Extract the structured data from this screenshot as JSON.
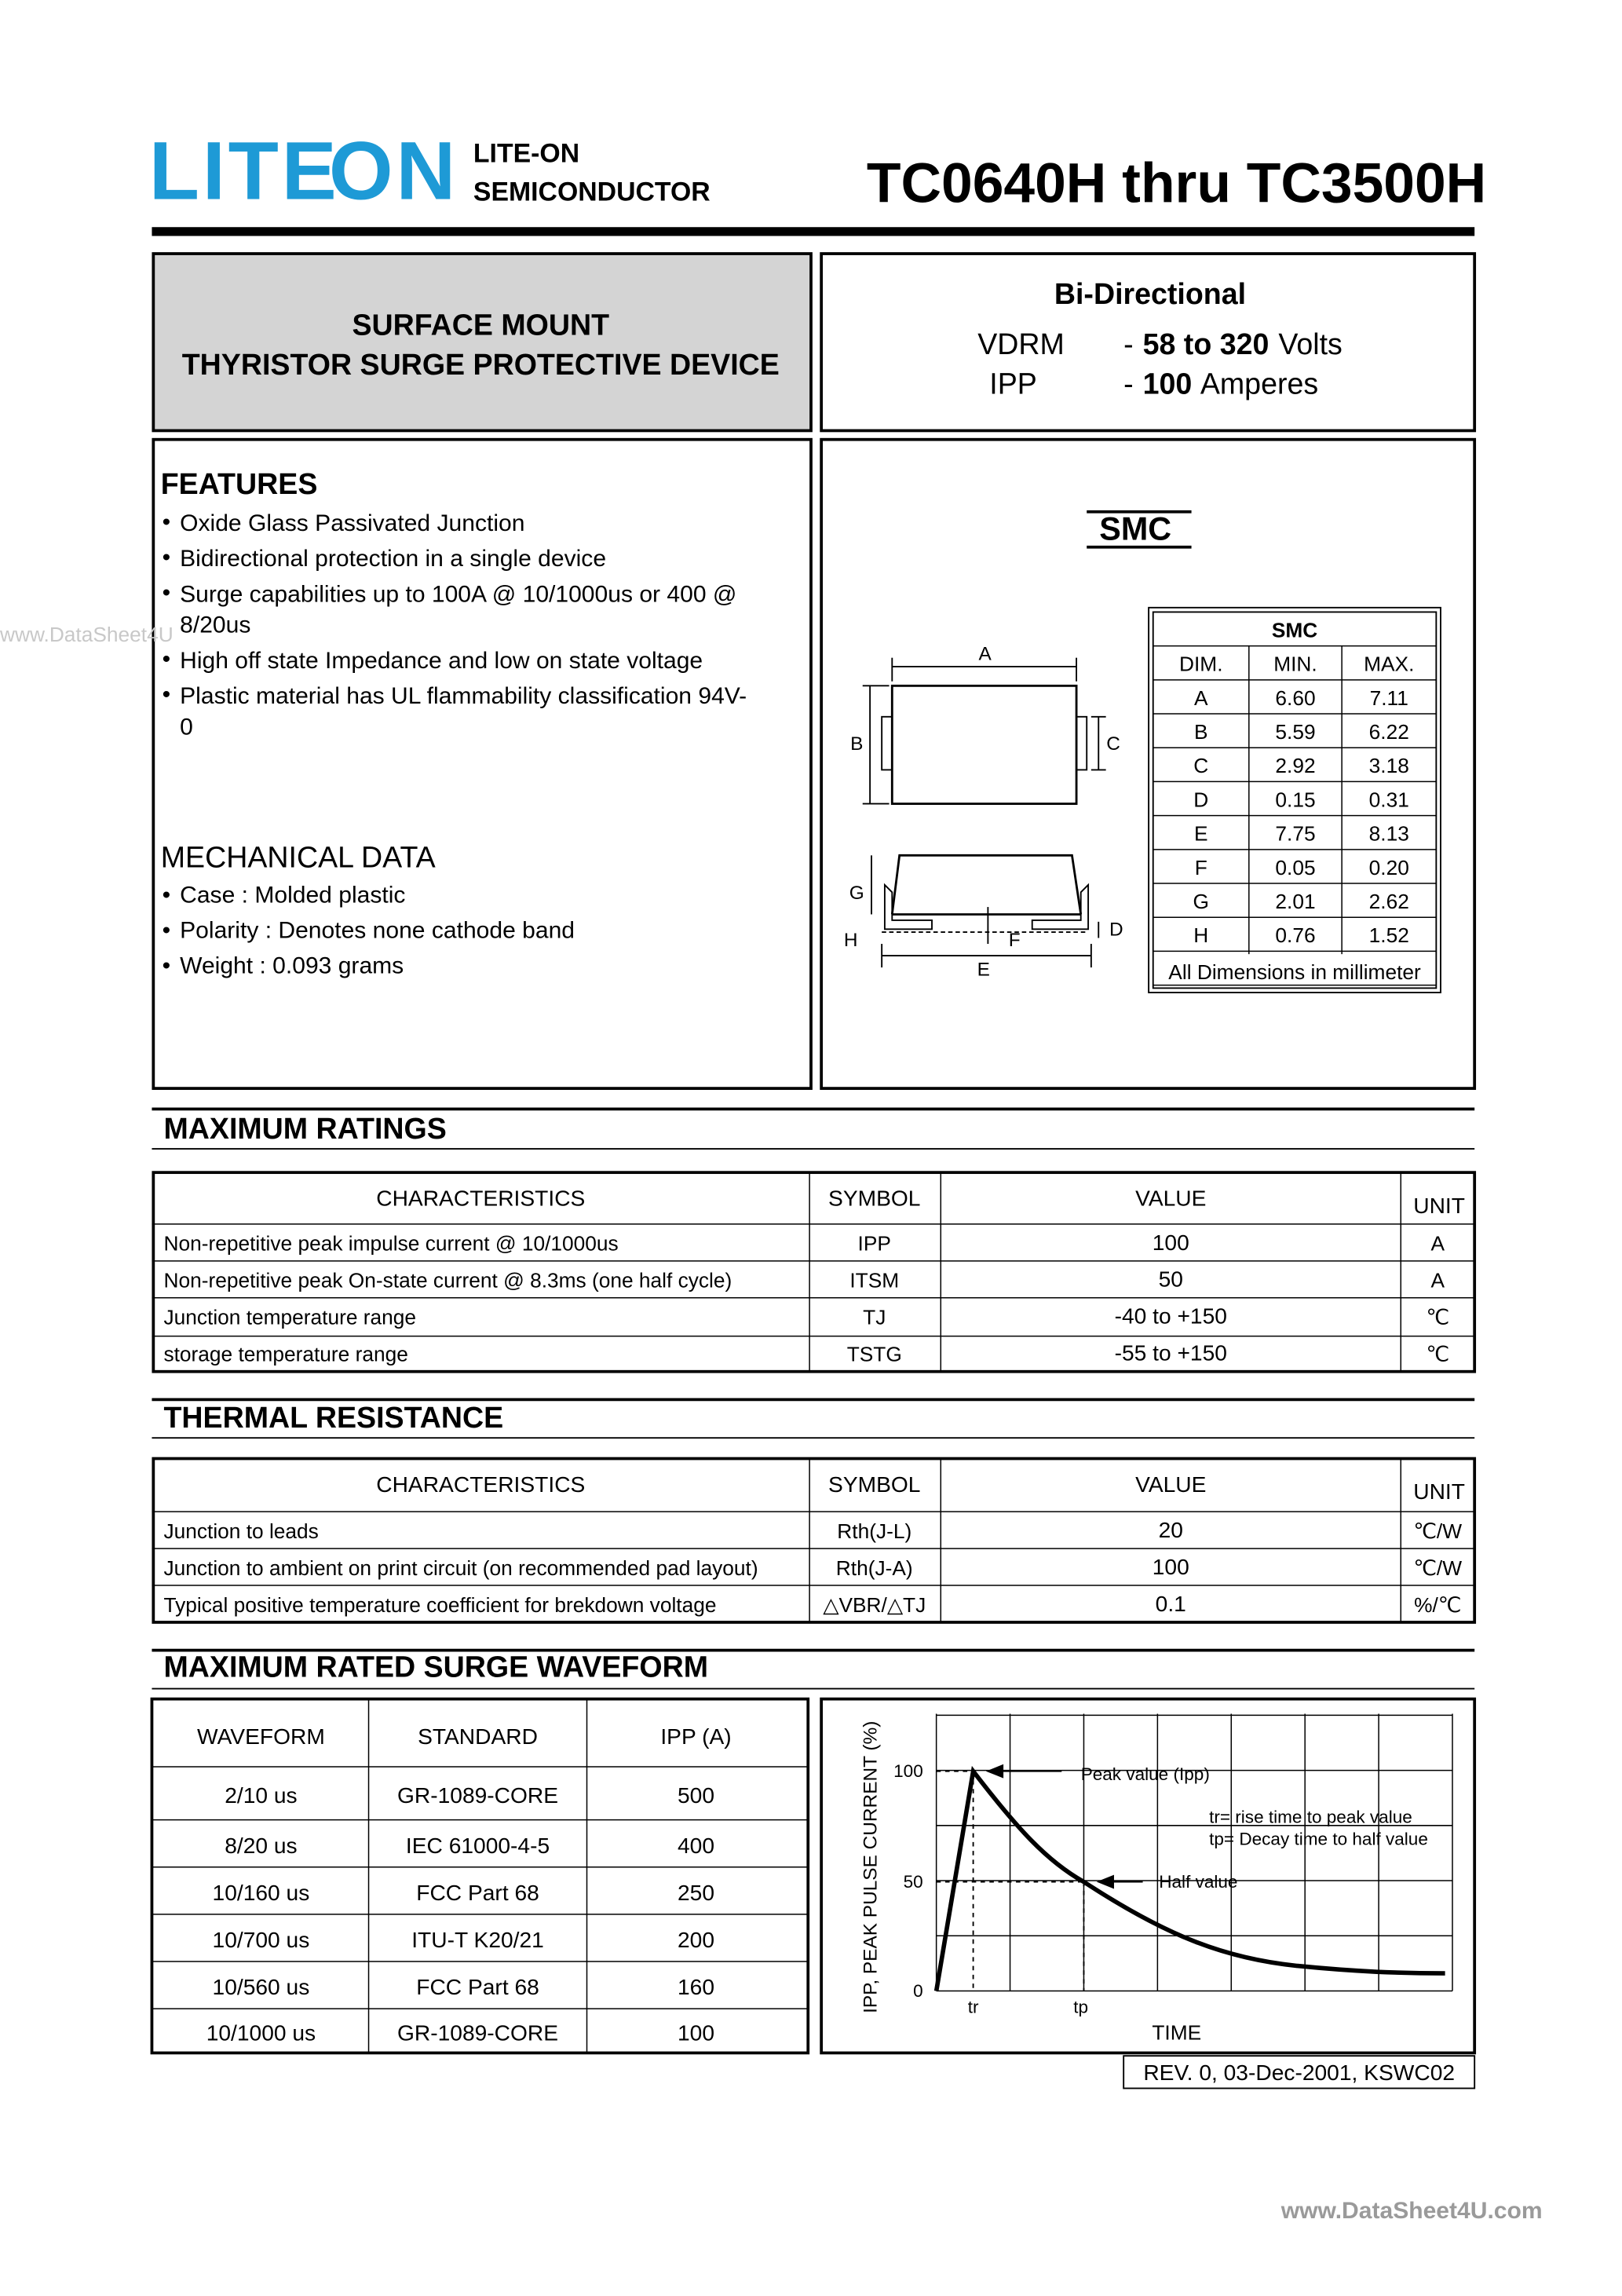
{
  "header": {
    "logo_left": "LITE",
    "logo_right": "ON",
    "company": [
      "LITE-ON",
      "SEMICONDUCTOR"
    ],
    "part_number": "TC0640H thru TC3500H"
  },
  "description": {
    "lines": [
      "SURFACE MOUNT",
      "THYRISTOR SURGE PROTECTIVE DEVICE"
    ]
  },
  "summary": {
    "title": "Bi-Directional",
    "rows": [
      {
        "symbol": "VDRM",
        "dash": "-",
        "value": "58 to 320",
        "unit": "Volts"
      },
      {
        "symbol": "IPP",
        "dash": "-",
        "value": "100",
        "unit": "Amperes"
      }
    ]
  },
  "features": {
    "title": "FEATURES",
    "items": [
      "Oxide Glass Passivated Junction",
      "Bidirectional protection in a single device",
      "Surge capabilities up to 100A @ 10/1000us or 400 @ 8/20us",
      "High off state Impedance and low on state voltage",
      "Plastic material has UL flammability classification 94V-0"
    ]
  },
  "mechanical": {
    "title": "MECHANICAL DATA",
    "items": [
      "Case : Molded plastic",
      "Polarity : Denotes none cathode band",
      "Weight :  0.093 grams"
    ]
  },
  "package": {
    "name": "SMC",
    "drawing_labels": [
      "A",
      "B",
      "C",
      "G",
      "H",
      "F",
      "D",
      "E"
    ],
    "table": {
      "title": "SMC",
      "header": [
        "DIM.",
        "MIN.",
        "MAX."
      ],
      "rows": [
        [
          "A",
          "6.60",
          "7.11"
        ],
        [
          "B",
          "5.59",
          "6.22"
        ],
        [
          "C",
          "2.92",
          "3.18"
        ],
        [
          "D",
          "0.15",
          "0.31"
        ],
        [
          "E",
          "7.75",
          "8.13"
        ],
        [
          "F",
          "0.05",
          "0.20"
        ],
        [
          "G",
          "2.01",
          "2.62"
        ],
        [
          "H",
          "0.76",
          "1.52"
        ]
      ],
      "note": "All Dimensions in millimeter"
    }
  },
  "max_ratings": {
    "title": "MAXIMUM RATINGS",
    "header": [
      "CHARACTERISTICS",
      "SYMBOL",
      "VALUE",
      "UNIT"
    ],
    "rows": [
      [
        "Non-repetitive peak impulse current @ 10/1000us",
        "IPP",
        "100",
        "A"
      ],
      [
        "Non-repetitive peak On-state current @ 8.3ms (one half cycle)",
        "ITSM",
        "50",
        "A"
      ],
      [
        "Junction temperature range",
        "TJ",
        "-40 to +150",
        "℃"
      ],
      [
        "storage temperature range",
        "TSTG",
        "-55 to +150",
        "℃"
      ]
    ]
  },
  "thermal": {
    "title": "THERMAL RESISTANCE",
    "header": [
      "CHARACTERISTICS",
      "SYMBOL",
      "VALUE",
      "UNIT"
    ],
    "rows": [
      [
        "Junction to leads",
        "Rth(J-L)",
        "20",
        "℃/W"
      ],
      [
        "Junction to ambient on print circuit (on recommended pad layout)",
        "Rth(J-A)",
        "100",
        "℃/W"
      ],
      [
        "Typical positive temperature coefficient for brekdown voltage",
        "△VBR/△TJ",
        "0.1",
        "%/℃"
      ]
    ]
  },
  "surge": {
    "title": "MAXIMUM RATED SURGE WAVEFORM",
    "header": [
      "WAVEFORM",
      "STANDARD",
      "IPP (A)"
    ],
    "rows": [
      [
        "2/10 us",
        "GR-1089-CORE",
        "500"
      ],
      [
        "8/20 us",
        "IEC 61000-4-5",
        "400"
      ],
      [
        "10/160 us",
        "FCC Part 68",
        "250"
      ],
      [
        "10/700 us",
        "ITU-T K20/21",
        "200"
      ],
      [
        "10/560 us",
        "FCC Part 68",
        "160"
      ],
      [
        "10/1000 us",
        "GR-1089-CORE",
        "100"
      ]
    ]
  },
  "waveform_graph": {
    "y_label": "IPP, PEAK PULSE CURRENT (%)",
    "y_ticks": [
      "100",
      "50",
      "0"
    ],
    "x_ticks": [
      "tr",
      "tp"
    ],
    "x_label": "TIME",
    "annotations": [
      "Peak value (Ipp)",
      "tr= rise time to peak value",
      "tp= Decay time to half value",
      "Half value"
    ]
  },
  "revision": "REV. 0, 03-Dec-2001, KSWC02",
  "watermarks": [
    "www.DataSheet4U",
    "www.DataSheet4U.com"
  ]
}
